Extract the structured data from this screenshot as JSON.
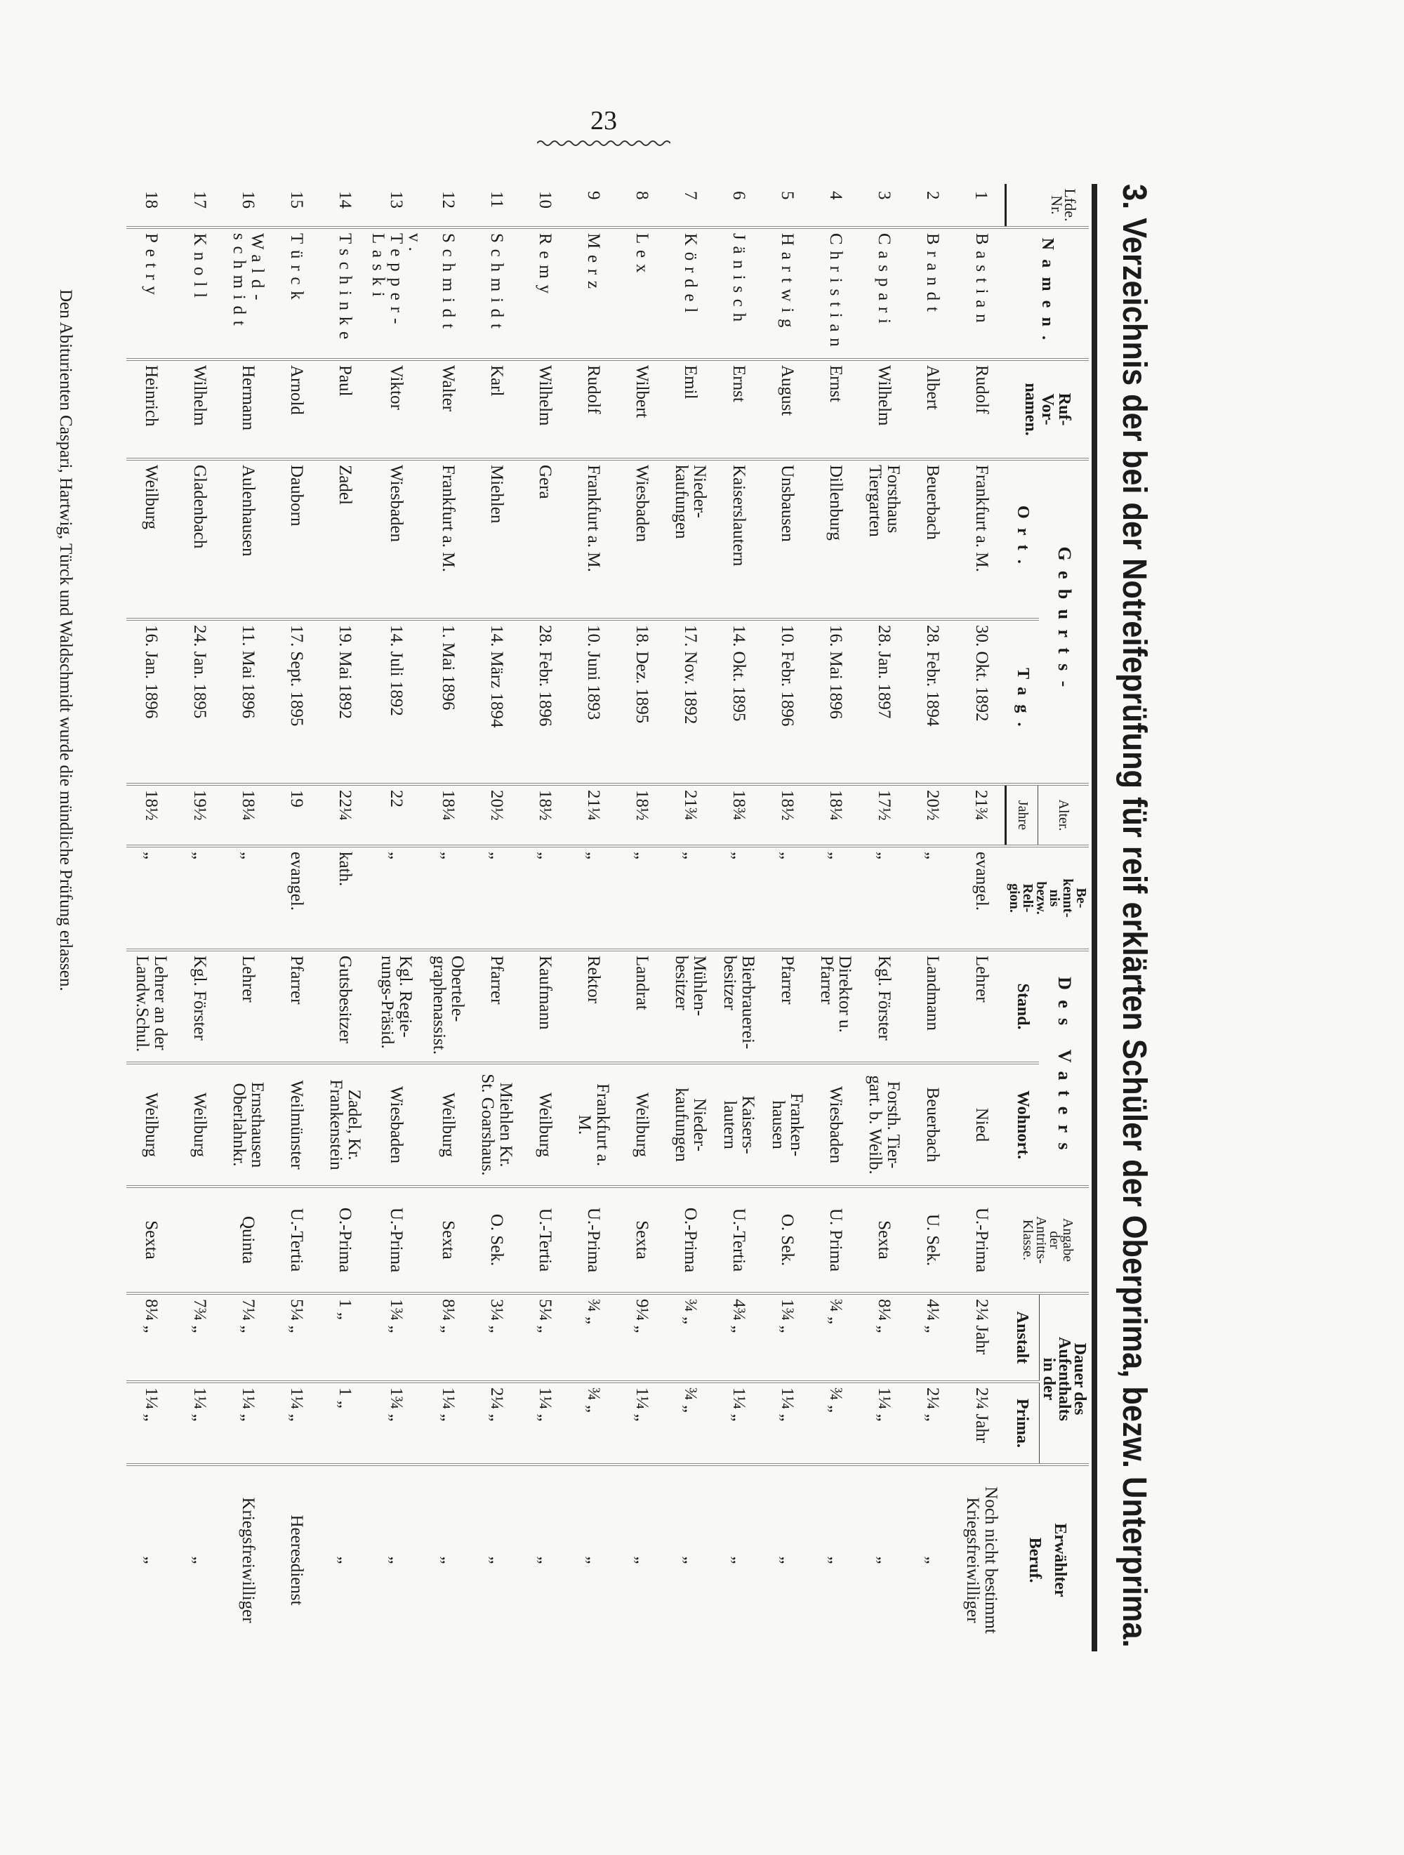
{
  "page_number": "23",
  "title": "3. Verzeichnis der bei der Notreifeprüfung für reif erklärten Schüler der Oberprima, bezw. Unterprima.",
  "headers": {
    "nr": "Lfde. Nr.",
    "name": "Namen.",
    "vorname": "Ruf-\nVor-\nnamen.",
    "geburt_group": "Geburts-",
    "ort": "Ort.",
    "tag": "Tag.",
    "alter": "Alter.",
    "jahre": "Jahre",
    "religion": "Be-\nkennt-\nnis\nbezw.\nReli-\ngion.",
    "vater_group": "Des Vaters",
    "stand": "Stand.",
    "wohnort": "Wohnort.",
    "klasse": "Angabe\nder\nAntritts-\nKlasse.",
    "dauer_group": "Dauer des\nAufenthalts\nin der",
    "anstalt": "Anstalt",
    "prima": "Prima.",
    "beruf": "Erwählter\nBeruf."
  },
  "rows": [
    {
      "nr": "1",
      "name": "Bastian",
      "vorname": "Rudolf",
      "ort": "Frankfurt a. M.",
      "tag": "30. Okt. 1892",
      "alter": "21¾",
      "religion": "evangel.",
      "stand": "Lehrer",
      "wohnort": "Nied",
      "klasse": "U.-Prima",
      "anstalt": "2¼ Jahr",
      "prima": "2¼ Jahr",
      "beruf": "Noch nicht bestimmt\nKriegsfreiwilliger"
    },
    {
      "nr": "2",
      "name": "Brandt",
      "vorname": "Albert",
      "ort": "Beuerbach",
      "tag": "28. Febr. 1894",
      "alter": "20½",
      "religion": "„",
      "stand": "Landmann",
      "wohnort": "Beuerbach",
      "klasse": "U. Sek.",
      "anstalt": "4¼ „",
      "prima": "2¼ „",
      "beruf": "„"
    },
    {
      "nr": "3",
      "name": "Caspari",
      "vorname": "Wilhelm",
      "ort": "Forsthaus\nTiergarten",
      "tag": "28. Jan. 1897",
      "alter": "17½",
      "religion": "„",
      "stand": "Kgl. Förster",
      "wohnort": "Forsth. Tier-\ngart. b. Weilb.",
      "klasse": "Sexta",
      "anstalt": "8¼ „",
      "prima": "1¼ „",
      "beruf": "„"
    },
    {
      "nr": "4",
      "name": "Christian",
      "vorname": "Ernst",
      "ort": "Dillenburg",
      "tag": "16. Mai 1896",
      "alter": "18¼",
      "religion": "„",
      "stand": "Direktor u.\nPfarrer",
      "wohnort": "Wiesbaden",
      "klasse": "U. Prima",
      "anstalt": "¾ „",
      "prima": "¾ „",
      "beruf": "„"
    },
    {
      "nr": "5",
      "name": "Hartwig",
      "vorname": "August",
      "ort": "Unsbausen",
      "tag": "10. Febr. 1896",
      "alter": "18½",
      "religion": "„",
      "stand": "Pfarrer",
      "wohnort": "Franken-\nhausen",
      "klasse": "O. Sek.",
      "anstalt": "1¾ „",
      "prima": "1¼ „",
      "beruf": "„"
    },
    {
      "nr": "6",
      "name": "Jänisch",
      "vorname": "Ernst",
      "ort": "Kaiserslautern",
      "tag": "14. Okt. 1895",
      "alter": "18¾",
      "religion": "„",
      "stand": "Bierbrauerei-\nbesitzer",
      "wohnort": "Kaisers-\nlautern",
      "klasse": "U.-Tertia",
      "anstalt": "4¾ „",
      "prima": "1¼ „",
      "beruf": "„"
    },
    {
      "nr": "7",
      "name": "Kördel",
      "vorname": "Emil",
      "ort": "Nieder-\nkaufungen",
      "tag": "17. Nov. 1892",
      "alter": "21¾",
      "religion": "„",
      "stand": "Mühlen-\nbesitzer",
      "wohnort": "Nieder-\nkaufungen",
      "klasse": "O.-Prima",
      "anstalt": "¾ „",
      "prima": "¾ „",
      "beruf": "„"
    },
    {
      "nr": "8",
      "name": "Lex",
      "vorname": "Wilbert",
      "ort": "Wiesbaden",
      "tag": "18. Dez. 1895",
      "alter": "18½",
      "religion": "„",
      "stand": "Landrat",
      "wohnort": "Weilburg",
      "klasse": "Sexta",
      "anstalt": "9¼ „",
      "prima": "1¼ „",
      "beruf": "„"
    },
    {
      "nr": "9",
      "name": "Merz",
      "vorname": "Rudolf",
      "ort": "Frankfurt a. M.",
      "tag": "10. Juni 1893",
      "alter": "21¼",
      "religion": "„",
      "stand": "Rektor",
      "wohnort": "Frankfurt a.\nM.",
      "klasse": "U.-Prima",
      "anstalt": "¾ „",
      "prima": "¾ „",
      "beruf": "„"
    },
    {
      "nr": "10",
      "name": "Remy",
      "vorname": "Wilhelm",
      "ort": "Gera",
      "tag": "28. Febr. 1896",
      "alter": "18½",
      "religion": "„",
      "stand": "Kaufmann",
      "wohnort": "Weilburg",
      "klasse": "U.-Tertia",
      "anstalt": "5¼ „",
      "prima": "1¼ „",
      "beruf": "„"
    },
    {
      "nr": "11",
      "name": "Schmidt",
      "vorname": "Karl",
      "ort": "Miehlen",
      "tag": "14. März 1894",
      "alter": "20½",
      "religion": "„",
      "stand": "Pfarrer",
      "wohnort": "Miehlen Kr.\nSt. Goarshaus.",
      "klasse": "O. Sek.",
      "anstalt": "3¼ „",
      "prima": "2¼ „",
      "beruf": "„"
    },
    {
      "nr": "12",
      "name": "Schmidt",
      "vorname": "Walter",
      "ort": "Frankfurt a. M.",
      "tag": "1. Mai 1896",
      "alter": "18¼",
      "religion": "„",
      "stand": "Obertele-\ngraphenassist.",
      "wohnort": "Weilburg",
      "klasse": "Sexta",
      "anstalt": "8¼ „",
      "prima": "1¼ „",
      "beruf": "„"
    },
    {
      "nr": "13",
      "name": "v. Tepper-\nLaski",
      "vorname": "Viktor",
      "ort": "Wiesbaden",
      "tag": "14. Juli 1892",
      "alter": "22",
      "religion": "„",
      "stand": "Kgl. Regie-\nrungs-Präsid.",
      "wohnort": "Wiesbaden",
      "klasse": "U.-Prima",
      "anstalt": "1¾ „",
      "prima": "1¾ „",
      "beruf": "„"
    },
    {
      "nr": "14",
      "name": "Tschinke",
      "vorname": "Paul",
      "ort": "Zadel",
      "tag": "19. Mai 1892",
      "alter": "22¼",
      "religion": "kath.",
      "stand": "Gutsbesitzer",
      "wohnort": "Zadel, Kr.\nFrankenstein",
      "klasse": "O.-Prima",
      "anstalt": "1 „",
      "prima": "1 „",
      "beruf": "„"
    },
    {
      "nr": "15",
      "name": "Türck",
      "vorname": "Arnold",
      "ort": "Dauborn",
      "tag": "17. Sept. 1895",
      "alter": "19",
      "religion": "evangel.",
      "stand": "Pfarrer",
      "wohnort": "Weilmünster",
      "klasse": "U.-Tertia",
      "anstalt": "5¼ „",
      "prima": "1¼ „",
      "beruf": "Heeresdienst"
    },
    {
      "nr": "16",
      "name": "Wald-\nschmidt",
      "vorname": "Hermann",
      "ort": "Aulenhausen",
      "tag": "11. Mai 1896",
      "alter": "18¼",
      "religion": "„",
      "stand": "Lehrer",
      "wohnort": "Ernsthausen\nOberlahnkr.",
      "klasse": "Quinta",
      "anstalt": "7¼ „",
      "prima": "1¼ „",
      "beruf": "Kriegsfreiwilliger"
    },
    {
      "nr": "17",
      "name": "Knoll",
      "vorname": "Wilhelm",
      "ort": "Gladenbach",
      "tag": "24. Jan. 1895",
      "alter": "19½",
      "religion": "„",
      "stand": "Kgl. Förster",
      "wohnort": "Weilburg",
      "klasse": "",
      "anstalt": "7¾ „",
      "prima": "1¼ „",
      "beruf": "„"
    },
    {
      "nr": "18",
      "name": "Petry",
      "vorname": "Heinrich",
      "ort": "Weilburg",
      "tag": "16. Jan. 1896",
      "alter": "18½",
      "religion": "„",
      "stand": "Lehrer an der\nLandw.Schul.",
      "wohnort": "Weilburg",
      "klasse": "Sexta",
      "anstalt": "8¼ „",
      "prima": "1¼ „",
      "beruf": "„"
    }
  ],
  "footer": "Den Abiturienten Caspari, Hartwig, Türck und Waldschmidt wurde die mündliche Prüfung erlassen."
}
